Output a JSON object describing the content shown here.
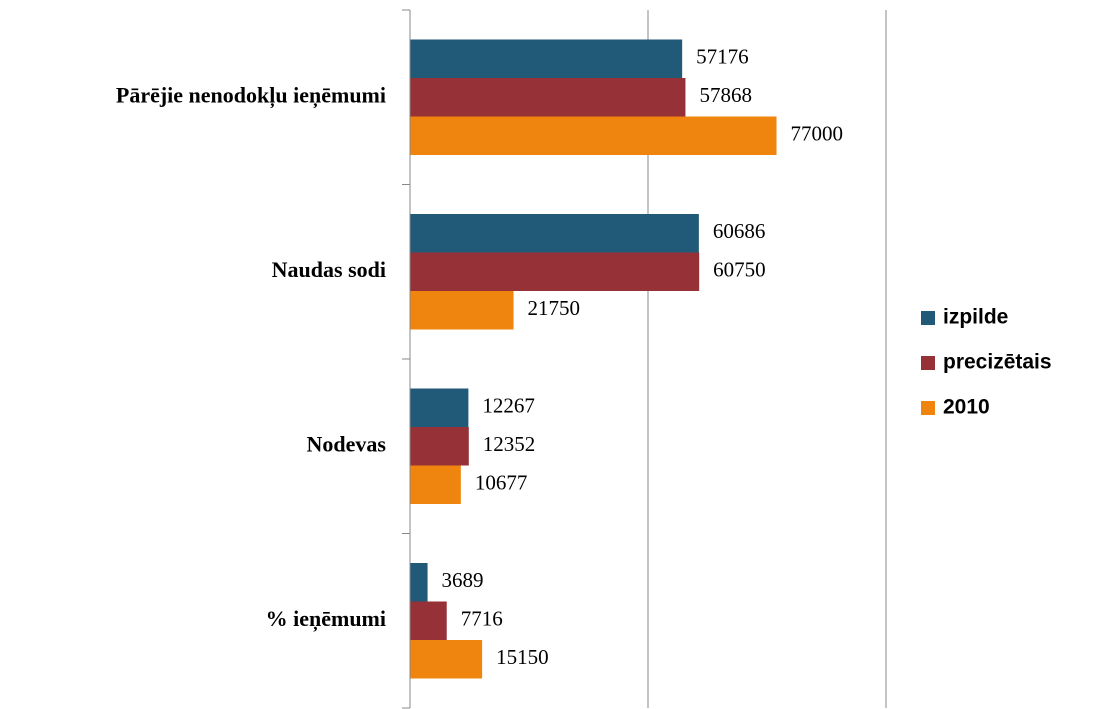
{
  "chart_data": {
    "type": "hbar",
    "categories": [
      "Pārējie nenodokļu ieņēmumi",
      "Naudas sodi",
      "Nodevas",
      "% ieņēmumi"
    ],
    "series": [
      {
        "name": "izpilde",
        "color": "#215a78",
        "values": [
          57176,
          60686,
          12267,
          3689
        ]
      },
      {
        "name": "precizētais",
        "color": "#953137",
        "values": [
          57868,
          60750,
          12352,
          7716
        ]
      },
      {
        "name": "2010",
        "color": "#ef840e",
        "values": [
          77000,
          21750,
          10677,
          15150
        ]
      }
    ],
    "xlim": [
      0,
      100000
    ],
    "xticks": [
      0,
      50000,
      100000
    ],
    "grid": true,
    "legend": "right"
  }
}
